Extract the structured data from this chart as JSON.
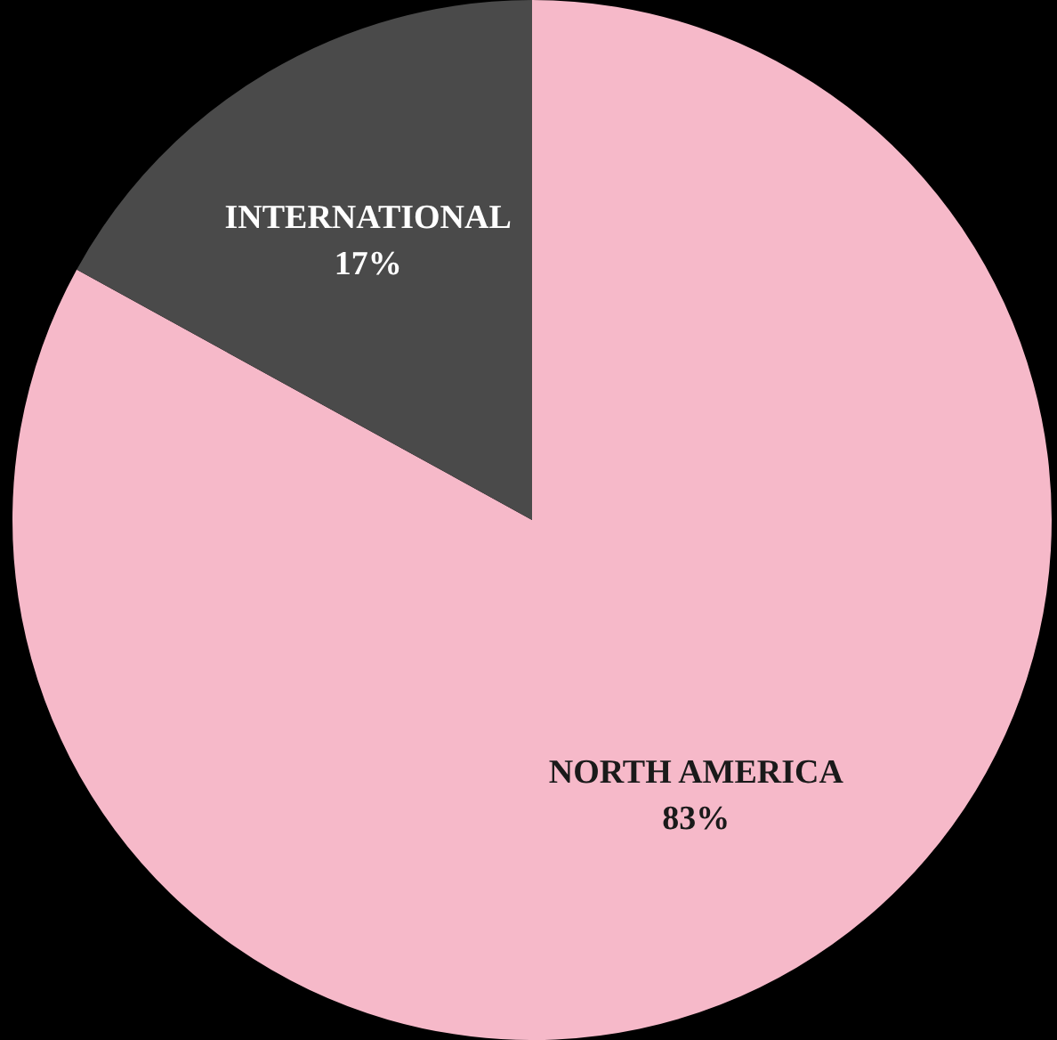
{
  "chart_data": {
    "type": "pie",
    "categories": [
      "NORTH AMERICA",
      "INTERNATIONAL"
    ],
    "values": [
      83,
      17
    ],
    "colors": [
      "#f6b9c9",
      "#4a4a4a"
    ],
    "value_labels": [
      "83%",
      "17%"
    ],
    "legend": false
  }
}
